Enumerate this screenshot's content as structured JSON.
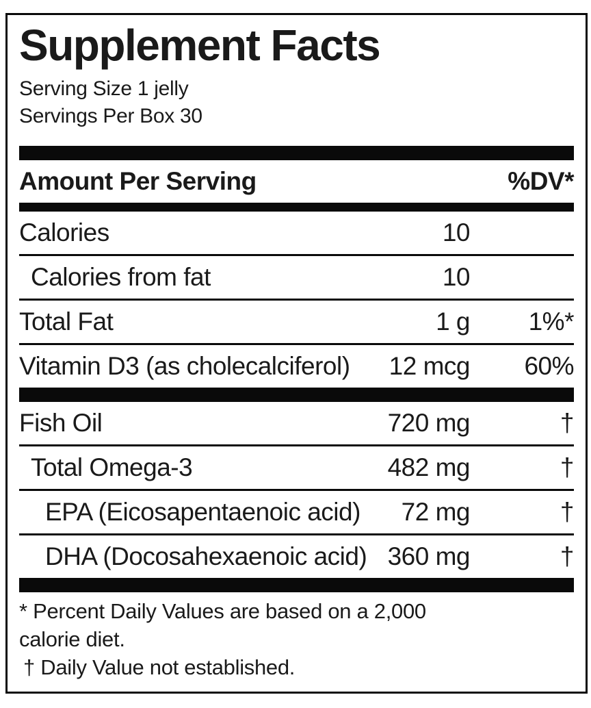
{
  "label": {
    "title": "Supplement Facts",
    "serving_info": {
      "serving_size": "Serving Size 1 jelly",
      "servings_per_box": "Servings Per Box 30"
    },
    "column_header": {
      "left": "Amount Per Serving",
      "right": "%DV*"
    },
    "rows": [
      {
        "name": "Calories",
        "amount": "10",
        "dv": ""
      },
      {
        "name": "Calories from fat",
        "amount": "10",
        "dv": ""
      },
      {
        "name": "Total Fat",
        "amount": "1 g",
        "dv": "1%*"
      },
      {
        "name": "Vitamin D3 (as cholecalciferol)",
        "amount": "12 mcg",
        "dv": "60%"
      },
      {
        "name": "Fish Oil",
        "amount": "720 mg",
        "dv": "†"
      },
      {
        "name": "Total Omega-3",
        "amount": "482 mg",
        "dv": "†"
      },
      {
        "name": "EPA (Eicosapentaenoic acid)",
        "amount": "72 mg",
        "dv": "†"
      },
      {
        "name": "DHA (Docosahexaenoic acid)",
        "amount": "360 mg",
        "dv": "†"
      }
    ],
    "footnotes": {
      "line1": "* Percent Daily Values are based on a 2,000",
      "line2": "calorie diet.",
      "line3": "† Daily Value not established."
    },
    "colors": {
      "ink": "#1a1a1a",
      "bar": "#0a0a0a",
      "background": "#ffffff"
    }
  }
}
